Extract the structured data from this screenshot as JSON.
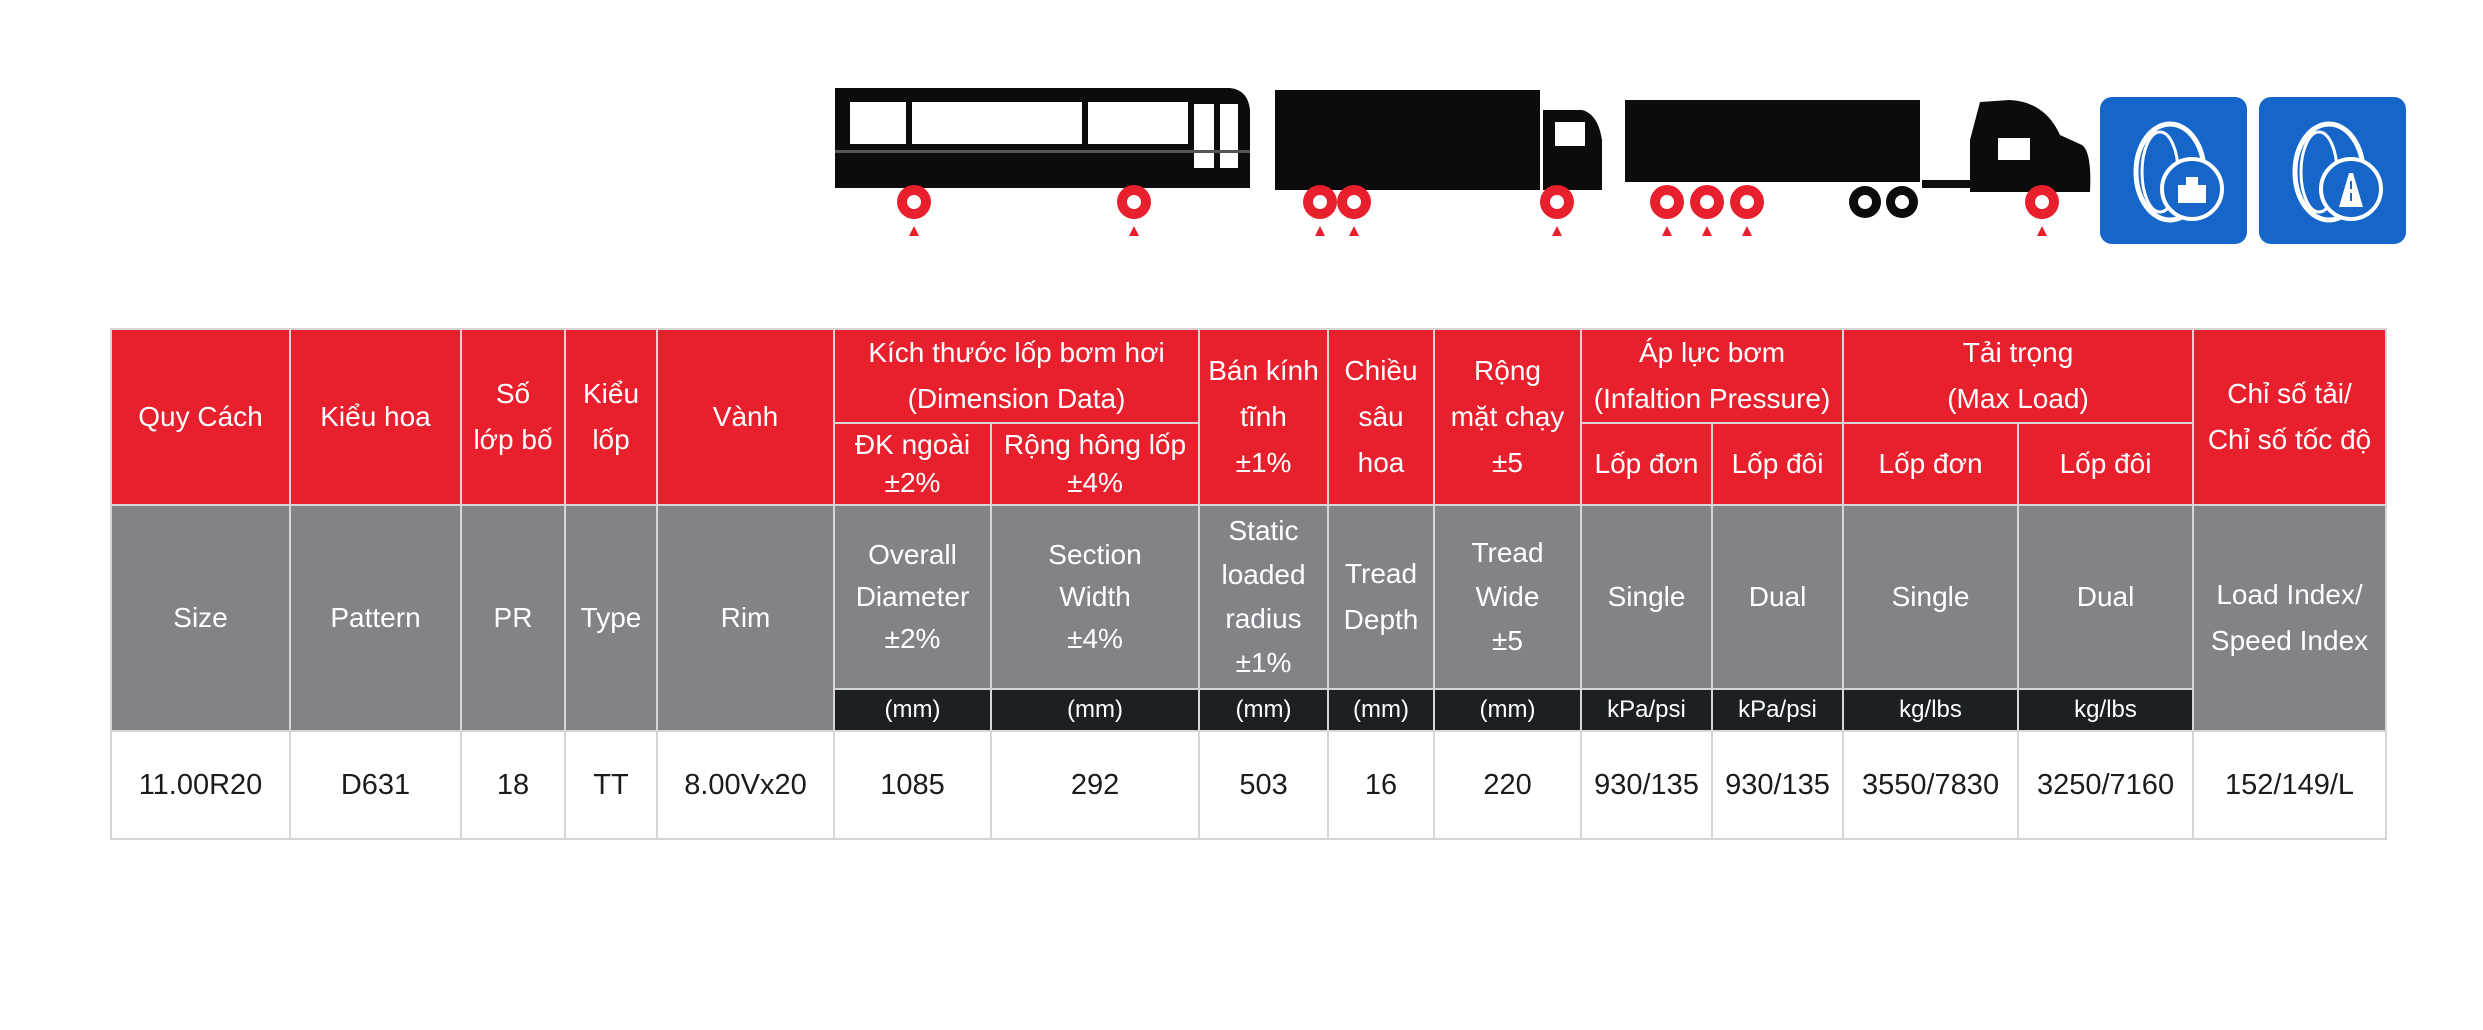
{
  "colors": {
    "header_red": "#e8202e",
    "subheader_gray": "#818389",
    "unit_dark": "#1c2024",
    "icon_blue": "#1566c8",
    "wheel_red": "#e8202e"
  },
  "icons": [
    "bus-icon",
    "box-truck-icon",
    "semi-truck-trailer-icon",
    "tire-urban-icon",
    "tire-highway-icon"
  ],
  "table": {
    "vn": {
      "size": "Quy Cách",
      "pattern": "Kiểu hoa",
      "pr": [
        "Số",
        "lớp bố"
      ],
      "type": [
        "Kiểu",
        "lốp"
      ],
      "rim": "Vành",
      "dimension": [
        "Kích thước lốp bơm hơi",
        "(Dimension Data)"
      ],
      "od": [
        "ĐK ngoài",
        "±2%"
      ],
      "sw": [
        "Rộng hông lốp",
        "±4%"
      ],
      "slr": [
        "Bán kính",
        "tĩnh",
        "±1%"
      ],
      "depth": [
        "Chiều",
        "sâu",
        "hoa"
      ],
      "tw": [
        "Rộng",
        "mặt chạy",
        "±5"
      ],
      "pressure": [
        "Áp lực bơm",
        "(Infaltion Pressure)"
      ],
      "load": [
        "Tải trọng",
        "(Max Load)"
      ],
      "single": "Lốp đơn",
      "dual": "Lốp đôi",
      "li": [
        "Chỉ số tải/",
        "Chỉ số tốc độ"
      ]
    },
    "en": {
      "size": "Size",
      "pattern": "Pattern",
      "pr": "PR",
      "type": "Type",
      "rim": "Rim",
      "od": [
        "Overall",
        "Diameter",
        "±2%"
      ],
      "sw": [
        "Section",
        "Width",
        "±4%"
      ],
      "slr": [
        "Static",
        "loaded",
        "radius",
        "±1%"
      ],
      "depth": [
        "Tread",
        "Depth"
      ],
      "tw": [
        "Tread",
        "Wide",
        "±5"
      ],
      "single": "Single",
      "dual": "Dual",
      "li": [
        "Load Index/",
        "Speed Index"
      ]
    },
    "units": {
      "od": "(mm)",
      "sw": "(mm)",
      "slr": "(mm)",
      "depth": "(mm)",
      "tw": "(mm)",
      "press_single": "kPa/psi",
      "press_dual": "kPa/psi",
      "load_single": "kg/lbs",
      "load_dual": "kg/lbs"
    },
    "rows": [
      [
        "11.00R20",
        "D631",
        "18",
        "TT",
        "8.00Vx20",
        "1085",
        "292",
        "503",
        "16",
        "220",
        "930/135",
        "930/135",
        "3550/7830",
        "3250/7160",
        "152/149/L"
      ]
    ]
  }
}
